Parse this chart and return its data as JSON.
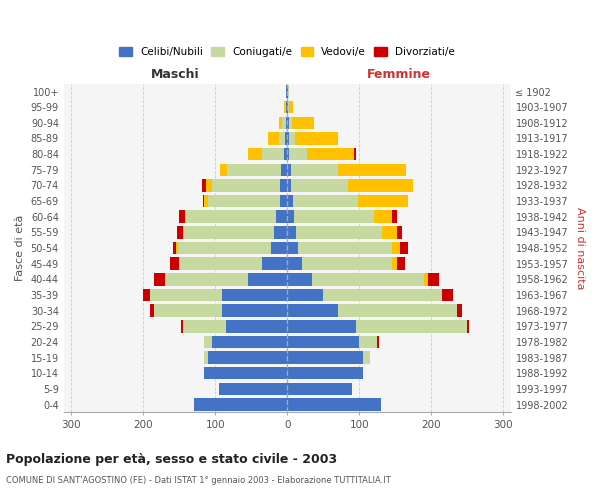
{
  "age_groups": [
    "0-4",
    "5-9",
    "10-14",
    "15-19",
    "20-24",
    "25-29",
    "30-34",
    "35-39",
    "40-44",
    "45-49",
    "50-54",
    "55-59",
    "60-64",
    "65-69",
    "70-74",
    "75-79",
    "80-84",
    "85-89",
    "90-94",
    "95-99",
    "100+"
  ],
  "birth_years": [
    "1998-2002",
    "1993-1997",
    "1988-1992",
    "1983-1987",
    "1978-1982",
    "1973-1977",
    "1968-1972",
    "1963-1967",
    "1958-1962",
    "1953-1957",
    "1948-1952",
    "1943-1947",
    "1938-1942",
    "1933-1937",
    "1928-1932",
    "1923-1927",
    "1918-1922",
    "1913-1917",
    "1908-1912",
    "1903-1907",
    "≤ 1902"
  ],
  "maschi": {
    "celibi": [
      130,
      95,
      115,
      110,
      105,
      85,
      90,
      90,
      55,
      35,
      22,
      18,
      15,
      10,
      10,
      8,
      5,
      3,
      2,
      1,
      1
    ],
    "coniugati": [
      0,
      0,
      0,
      5,
      10,
      60,
      95,
      100,
      115,
      115,
      130,
      125,
      125,
      100,
      95,
      75,
      30,
      8,
      5,
      2,
      1
    ],
    "vedovi": [
      0,
      0,
      0,
      0,
      0,
      0,
      0,
      0,
      0,
      0,
      2,
      2,
      2,
      5,
      8,
      10,
      20,
      15,
      5,
      1,
      0
    ],
    "divorziati": [
      0,
      0,
      0,
      0,
      0,
      2,
      5,
      10,
      15,
      12,
      5,
      8,
      8,
      2,
      5,
      0,
      0,
      0,
      0,
      0,
      0
    ]
  },
  "femmine": {
    "nubili": [
      130,
      90,
      105,
      105,
      100,
      95,
      70,
      50,
      35,
      20,
      15,
      12,
      10,
      8,
      5,
      5,
      3,
      3,
      2,
      1,
      1
    ],
    "coniugate": [
      0,
      0,
      0,
      10,
      25,
      155,
      165,
      165,
      155,
      125,
      130,
      120,
      110,
      90,
      80,
      65,
      25,
      8,
      5,
      2,
      1
    ],
    "vedove": [
      0,
      0,
      0,
      0,
      0,
      0,
      0,
      0,
      5,
      8,
      12,
      20,
      25,
      70,
      90,
      95,
      65,
      60,
      30,
      5,
      1
    ],
    "divorziate": [
      0,
      0,
      0,
      0,
      2,
      2,
      8,
      15,
      15,
      10,
      10,
      8,
      8,
      0,
      0,
      0,
      2,
      0,
      0,
      0,
      0
    ]
  },
  "colors": {
    "celibi": "#4472c4",
    "coniugati": "#c5d9a0",
    "vedovi": "#ffc000",
    "divorziati": "#cc0000"
  },
  "xlim": 310,
  "title": "Popolazione per età, sesso e stato civile - 2003",
  "subtitle": "COMUNE DI SANT'AGOSTINO (FE) - Dati ISTAT 1° gennaio 2003 - Elaborazione TUTTITALIA.IT",
  "ylabel": "Fasce di età",
  "ylabel2": "Anni di nascita",
  "xlabel_left": "Maschi",
  "xlabel_right": "Femmine",
  "bg_color": "#f5f5f5"
}
